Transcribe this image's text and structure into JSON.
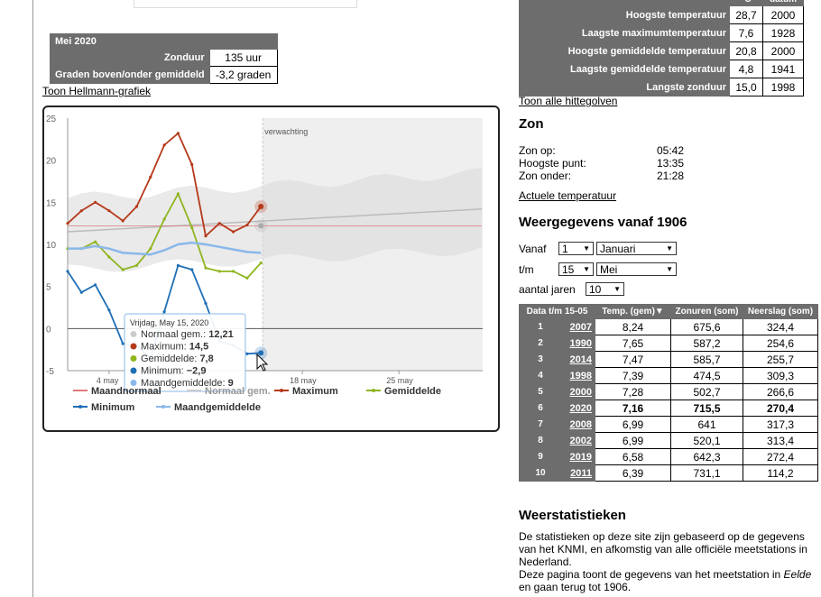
{
  "month": {
    "title": "Mei 2020",
    "rows": [
      {
        "label": "Zonduur",
        "value": "135 uur"
      },
      {
        "label": "Graden boven/onder gemiddeld",
        "value": "-3,2 graden"
      }
    ]
  },
  "links": {
    "hellmann": "Toon Hellmann-grafiek",
    "hittegolven": "Toon alle hittegolven",
    "actueel": "Actuele temperatuur"
  },
  "records": {
    "header": [
      "°C",
      "datum"
    ],
    "rows": [
      {
        "label": "Hoogste temperatuur",
        "value": "28,7",
        "year": "2000"
      },
      {
        "label": "Laagste maximumtemperatuur",
        "value": "7,6",
        "year": "1928"
      },
      {
        "label": "Hoogste gemiddelde temperatuur",
        "value": "20,8",
        "year": "2000"
      },
      {
        "label": "Laagste gemiddelde temperatuur",
        "value": "4,8",
        "year": "1941"
      },
      {
        "label": "Langste zonduur",
        "value": "15,0",
        "year": "1998"
      }
    ]
  },
  "zon": {
    "title": "Zon",
    "rows": [
      {
        "k": "Zon op:",
        "v": "05:42"
      },
      {
        "k": "Hoogste punt:",
        "v": "13:35"
      },
      {
        "k": "Zon onder:",
        "v": "21:28"
      }
    ]
  },
  "weergegevens": {
    "title": "Weergegevens vanaf 1906",
    "vanaf_label": "Vanaf",
    "vanaf_day": "1",
    "vanaf_month": "Januari",
    "tm_label": "t/m",
    "tm_day": "15",
    "tm_month": "Mei",
    "jaren_label": "aantal jaren",
    "jaren": "10"
  },
  "top10": {
    "headers": [
      "Data t/m 15-05",
      "Temp. (gem)▼",
      "Zonuren (som)",
      "Neerslag (som)"
    ],
    "rows": [
      {
        "rank": "1",
        "year": "2007",
        "temp": "8,24",
        "zon": "675,6",
        "neer": "324,4"
      },
      {
        "rank": "2",
        "year": "1990",
        "temp": "7,65",
        "zon": "587,2",
        "neer": "254,6"
      },
      {
        "rank": "3",
        "year": "2014",
        "temp": "7,47",
        "zon": "585,7",
        "neer": "255,7"
      },
      {
        "rank": "4",
        "year": "1998",
        "temp": "7,39",
        "zon": "474,5",
        "neer": "309,3"
      },
      {
        "rank": "5",
        "year": "2000",
        "temp": "7,28",
        "zon": "502,7",
        "neer": "266,6"
      },
      {
        "rank": "6",
        "year": "2020",
        "temp": "7,16",
        "zon": "715,5",
        "neer": "270,4",
        "highlight": true
      },
      {
        "rank": "7",
        "year": "2008",
        "temp": "6,99",
        "zon": "641",
        "neer": "317,3"
      },
      {
        "rank": "8",
        "year": "2002",
        "temp": "6,99",
        "zon": "520,1",
        "neer": "313,4"
      },
      {
        "rank": "9",
        "year": "2019",
        "temp": "6,58",
        "zon": "642,3",
        "neer": "272,4"
      },
      {
        "rank": "10",
        "year": "2011",
        "temp": "6,39",
        "zon": "731,1",
        "neer": "114,2"
      }
    ]
  },
  "stats": {
    "title": "Weerstatistieken",
    "p1": "De statistieken op deze site zijn gebaseerd op de gegevens van het KNMI, en afkomstig van alle officiële meetstations in Nederland.",
    "p2a": "Deze pagina toont de gegevens van het meetstation in",
    "p2station": "Eelde",
    "p2b": "en gaan terug tot 1906."
  },
  "colors": {
    "maximum": "#b5391a",
    "gemiddelde": "#8fb51f",
    "minimum": "#1f6fb5",
    "maandgemiddelde": "#8ab8ea",
    "normaal": "#e07a7a",
    "header_bg": "#6d6d6d"
  },
  "chart_data": {
    "type": "line",
    "ylim": [
      -5,
      25
    ],
    "yticks": [
      -5,
      0,
      5,
      10,
      15,
      20,
      25
    ],
    "xticks": [
      "4 may",
      "18 may",
      "25 may"
    ],
    "forecast_label": "verwachting",
    "days": [
      1,
      2,
      3,
      4,
      5,
      6,
      7,
      8,
      9,
      10,
      11,
      12,
      13,
      14,
      15
    ],
    "series": [
      {
        "name": "Maximum",
        "values": [
          12.5,
          14,
          15,
          14,
          12.8,
          14.5,
          18,
          21.8,
          23.2,
          19.5,
          11,
          12.5,
          11.5,
          12.3,
          14.5
        ]
      },
      {
        "name": "Gemiddelde",
        "values": [
          9.5,
          9.5,
          10.3,
          8.5,
          7,
          7.5,
          9.5,
          13,
          16,
          12,
          7.2,
          6.8,
          6.8,
          6,
          7.8
        ]
      },
      {
        "name": "Minimum",
        "values": [
          6.8,
          4.3,
          5.2,
          2.2,
          -1.8,
          -2,
          -3.5,
          2,
          7.5,
          7,
          3,
          -1.5,
          -2,
          -3,
          -2.9
        ]
      },
      {
        "name": "Maandgemiddelde",
        "values": [
          9.5,
          9.5,
          9.8,
          9.5,
          9,
          8.9,
          8.8,
          9.3,
          10,
          10.2,
          10,
          9.7,
          9.4,
          9.1,
          9
        ]
      }
    ],
    "normal_line": 12.21,
    "legend": [
      "Maandnormaal",
      "Normaal gem.",
      "Maximum",
      "Gemiddelde",
      "Minimum",
      "Maandgemiddelde"
    ],
    "tooltip": {
      "title": "Vrijdag, May 15, 2020",
      "rows": [
        {
          "name": "Normaal gem.",
          "value": "12,21"
        },
        {
          "name": "Maximum",
          "value": "14,5"
        },
        {
          "name": "Gemiddelde",
          "value": "7,8"
        },
        {
          "name": "Minimum",
          "value": "−2,9"
        },
        {
          "name": "Maandgemiddelde",
          "value": "9"
        }
      ]
    }
  }
}
